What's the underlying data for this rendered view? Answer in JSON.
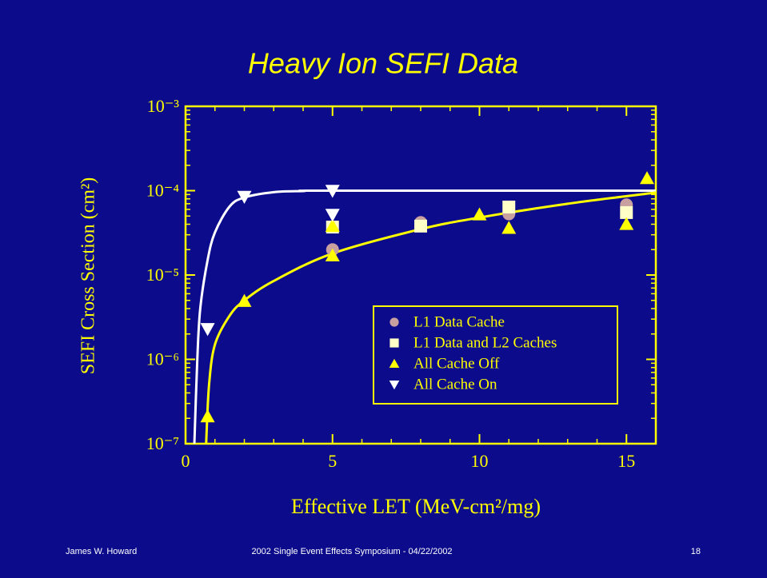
{
  "chart_data": {
    "type": "scatter",
    "title": "Heavy Ion SEFI Data",
    "x_label": "Effective LET (MeV-cm²/mg)",
    "y_label": "SEFI Cross Section (cm²)",
    "xlim": [
      0,
      16
    ],
    "xticks": [
      0,
      5,
      10,
      15
    ],
    "ylim": [
      1e-07,
      0.001
    ],
    "yticks": [
      {
        "value": 1e-07,
        "label": "10⁻⁷"
      },
      {
        "value": 1e-06,
        "label": "10⁻⁶"
      },
      {
        "value": 1e-05,
        "label": "10⁻⁵"
      },
      {
        "value": 0.0001,
        "label": "10⁻⁴"
      },
      {
        "value": 0.001,
        "label": "10⁻³"
      }
    ],
    "ylog": true,
    "legend": "lower right",
    "series": [
      {
        "name": "L1 Data Cache",
        "color": "#c8a0a0",
        "marker": "circle",
        "x": [
          5,
          8,
          11,
          15
        ],
        "values": [
          2e-05,
          4.2e-05,
          5.3e-05,
          6.8e-05
        ]
      },
      {
        "name": "L1 Data and L2 Caches",
        "color": "#ffffc8",
        "marker": "square",
        "x": [
          5,
          8,
          11,
          15
        ],
        "values": [
          3.7e-05,
          3.8e-05,
          6.4e-05,
          5.5e-05
        ]
      },
      {
        "name": "All Cache Off",
        "color": "#ffff00",
        "marker": "triangle-up",
        "x": [
          0.75,
          2,
          5,
          5,
          10,
          11,
          15,
          15.7
        ],
        "values": [
          2.1e-07,
          4.9e-06,
          1.7e-05,
          3.8e-05,
          5.2e-05,
          3.6e-05,
          4e-05,
          0.00014
        ]
      },
      {
        "name": "All Cache On",
        "color": "#ffffff",
        "marker": "triangle-down",
        "x": [
          0.75,
          2,
          5,
          5
        ],
        "values": [
          2.3e-06,
          8.5e-05,
          0.0001,
          5.2e-05
        ]
      }
    ],
    "fits": [
      {
        "color": "#ffffff",
        "x": [
          0.3,
          0.4,
          0.5,
          0.75,
          1,
          1.5,
          2,
          3,
          4,
          5,
          16
        ],
        "values": [
          1e-07,
          1e-06,
          4e-06,
          1.5e-05,
          3.2e-05,
          6.5e-05,
          8.3e-05,
          9.6e-05,
          9.9e-05,
          0.0001,
          0.0001
        ]
      },
      {
        "color": "#ffff00",
        "x": [
          0.7,
          0.8,
          1,
          1.5,
          2,
          3,
          5,
          8,
          10,
          13,
          16
        ],
        "values": [
          1e-07,
          5e-07,
          1.5e-06,
          3.3e-06,
          5e-06,
          8.5e-06,
          1.8e-05,
          3.5e-05,
          4.8e-05,
          7e-05,
          9.5e-05
        ]
      }
    ]
  },
  "footer": {
    "author": "James W. Howard",
    "event": "2002 Single Event Effects Symposium - 04/22/2002",
    "page": "18"
  }
}
